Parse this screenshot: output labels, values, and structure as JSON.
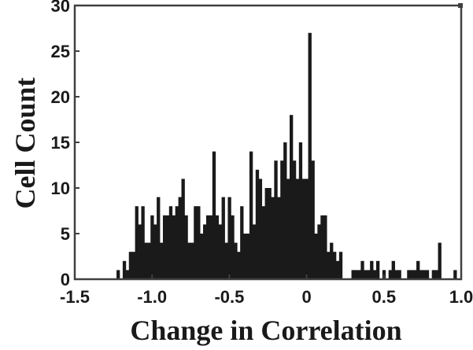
{
  "chart_data": {
    "type": "bar",
    "subtype": "histogram",
    "title": "",
    "xlabel": "Change in Correlation",
    "ylabel": "Cell Count",
    "xlim": [
      -1.5,
      1.0
    ],
    "ylim": [
      0,
      30
    ],
    "xticks": [
      -1.5,
      -1.0,
      -0.5,
      0,
      0.5,
      1.0
    ],
    "xtick_labels": [
      "-1.5",
      "-1.0",
      "-0.5",
      "0",
      "0.5",
      "1.0"
    ],
    "yticks": [
      0,
      5,
      10,
      15,
      20,
      25,
      30
    ],
    "ytick_labels": [
      "0",
      "5",
      "10",
      "15",
      "20",
      "25",
      "30"
    ],
    "grid": false,
    "legend": null,
    "bin_start": -1.23,
    "bin_width": 0.02,
    "bar_color": "#1a1a1a",
    "axis_color": "#404040",
    "values": [
      1,
      0,
      2,
      1,
      3,
      3,
      8,
      6,
      8,
      4,
      4,
      7,
      6,
      9,
      4,
      7,
      7,
      8,
      7,
      8,
      9,
      11,
      7,
      4,
      4,
      8,
      8,
      5,
      6,
      7,
      7,
      14,
      7,
      6,
      9,
      4,
      9,
      7,
      4,
      3,
      8,
      5,
      5,
      14,
      6,
      12,
      11,
      8,
      10,
      10,
      9,
      13,
      9,
      13,
      15,
      11,
      18,
      13,
      11,
      15,
      11,
      11,
      27,
      13,
      5,
      6,
      7,
      7,
      3,
      4,
      3,
      2,
      3,
      0,
      0,
      0,
      1,
      1,
      1,
      2,
      1,
      1,
      2,
      1,
      2,
      0,
      1,
      0,
      1,
      2,
      1,
      1,
      0,
      0,
      1,
      1,
      1,
      2,
      1,
      1,
      1,
      0,
      1,
      1,
      4,
      0,
      0,
      0,
      0,
      1,
      0
    ]
  }
}
